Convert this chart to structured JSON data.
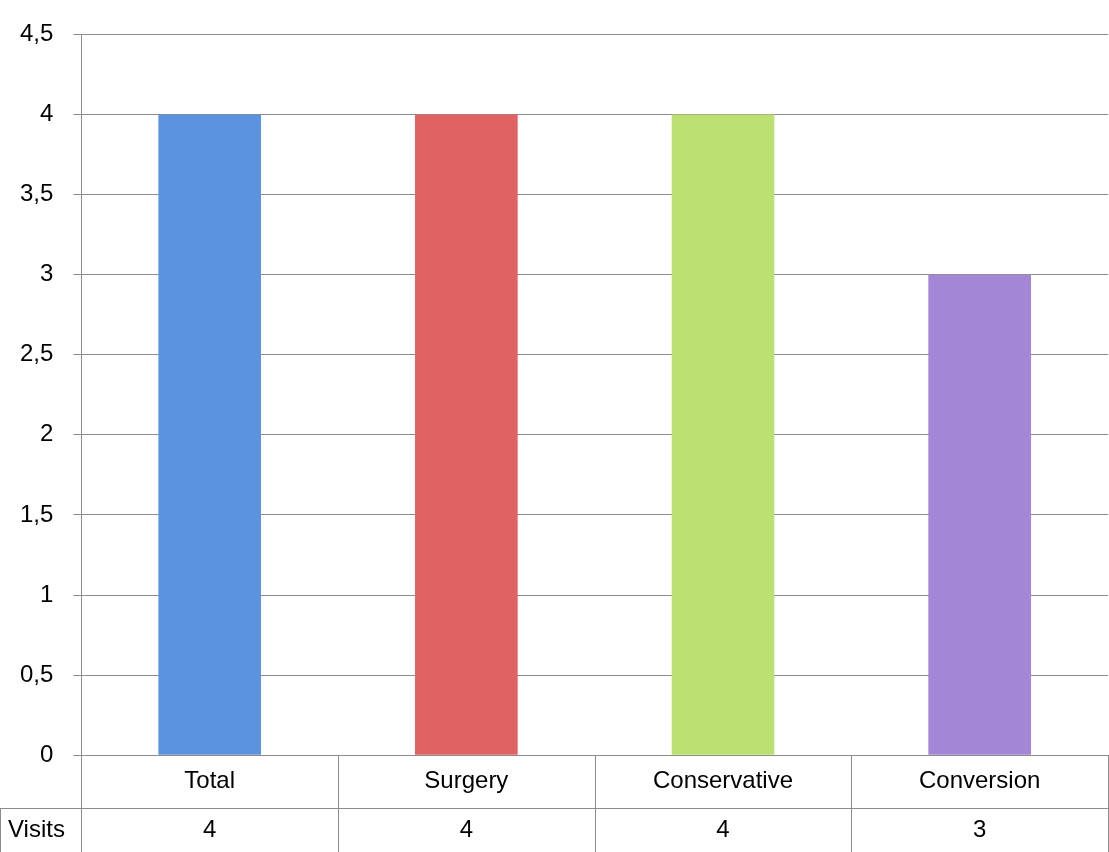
{
  "chart_data": {
    "type": "bar",
    "categories": [
      "Total",
      "Surgery",
      "Conservative",
      "Conversion"
    ],
    "series": [
      {
        "name": "Visits",
        "colors": [
          "#5b93e0",
          "#e06262",
          "#bde072",
          "#a386d6"
        ],
        "values": [
          4,
          4,
          4,
          3
        ]
      }
    ],
    "ylim": [
      0,
      4.5
    ],
    "yticks": [
      0,
      {
        "value": 0.5,
        "label": "0,5"
      },
      1,
      {
        "value": 1.5,
        "label": "1,5"
      },
      2,
      {
        "value": 2.5,
        "label": "2,5"
      },
      3,
      {
        "value": 3.5,
        "label": "3,5"
      },
      4,
      {
        "value": 4.5,
        "label": "4,5"
      }
    ],
    "grid": "y",
    "legend": false,
    "data_labels": true
  }
}
